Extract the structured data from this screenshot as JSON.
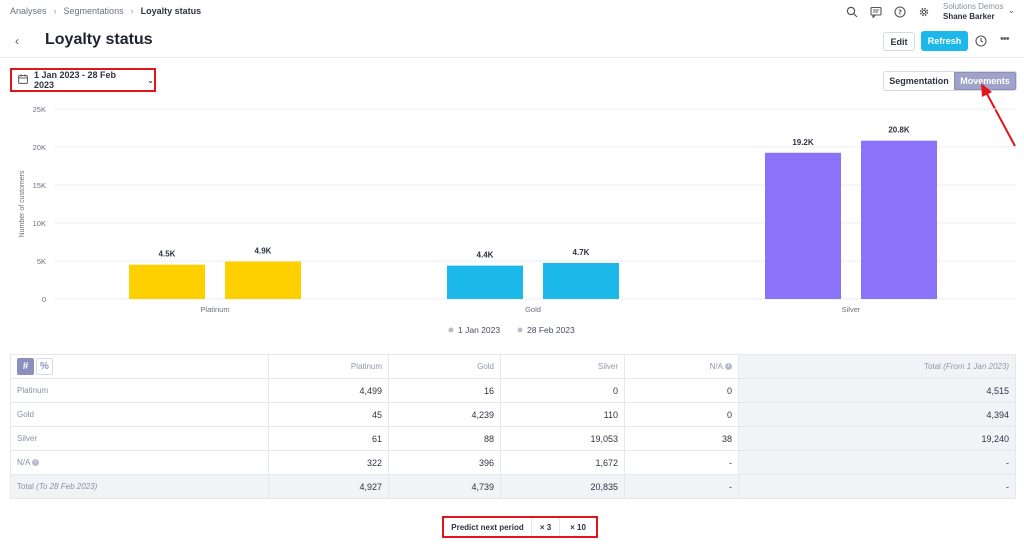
{
  "breadcrumb": {
    "items": [
      "Analyses",
      "Segmentations",
      "Loyalty status"
    ]
  },
  "user": {
    "org": "Solutions Demos",
    "name": "Shane Barker"
  },
  "header": {
    "title": "Loyalty status",
    "edit_label": "Edit",
    "refresh_label": "Refresh"
  },
  "date_range": {
    "label": "1 Jan 2023 - 28 Feb 2023"
  },
  "view_toggle": {
    "options": [
      "Segmentation",
      "Movements"
    ],
    "selected": "Movements"
  },
  "colors": {
    "platinum": "#ffd000",
    "gold": "#1cb8ea",
    "silver": "#8a73f8",
    "accent": "#1cb8ea",
    "highlight": "#e0161b"
  },
  "chart_data": {
    "type": "bar",
    "categories": [
      "Platinum",
      "Gold",
      "Silver"
    ],
    "series": [
      {
        "name": "1 Jan 2023",
        "values": [
          4515,
          4394,
          19240
        ],
        "labels": [
          "4.5K",
          "4.4K",
          "19.2K"
        ]
      },
      {
        "name": "28 Feb 2023",
        "values": [
          4927,
          4739,
          20835
        ],
        "labels": [
          "4.9K",
          "4.7K",
          "20.8K"
        ]
      }
    ],
    "ylabel": "Number of customers",
    "ylim": [
      0,
      25000
    ],
    "yticks": [
      0,
      5000,
      10000,
      15000,
      20000,
      25000
    ],
    "yticklabels": [
      "0",
      "5K",
      "10K",
      "15K",
      "20K",
      "25K"
    ],
    "legend_position": "bottom",
    "grid": true
  },
  "table": {
    "mode_buttons": [
      "#",
      "%"
    ],
    "headers": [
      "Platinum",
      "Gold",
      "Silver",
      "N/A",
      "Total",
      "From 1 Jan 2023"
    ],
    "rows": [
      {
        "label": "Platinum",
        "cells": [
          "4,499",
          "16",
          "0",
          "0"
        ],
        "total": "4,515"
      },
      {
        "label": "Gold",
        "cells": [
          "45",
          "4,239",
          "110",
          "0"
        ],
        "total": "4,394"
      },
      {
        "label": "Silver",
        "cells": [
          "61",
          "88",
          "19,053",
          "38"
        ],
        "total": "19,240"
      },
      {
        "label": "N/A",
        "cells": [
          "322",
          "396",
          "1,672",
          "-"
        ],
        "total": "-"
      }
    ],
    "total_row": {
      "label": "Total",
      "label_note": "To 28 Feb 2023",
      "cells": [
        "4,927",
        "4,739",
        "20,835",
        "-"
      ],
      "total": "-"
    }
  },
  "predict": {
    "label": "Predict next period",
    "x3": "× 3",
    "x10": "× 10"
  }
}
